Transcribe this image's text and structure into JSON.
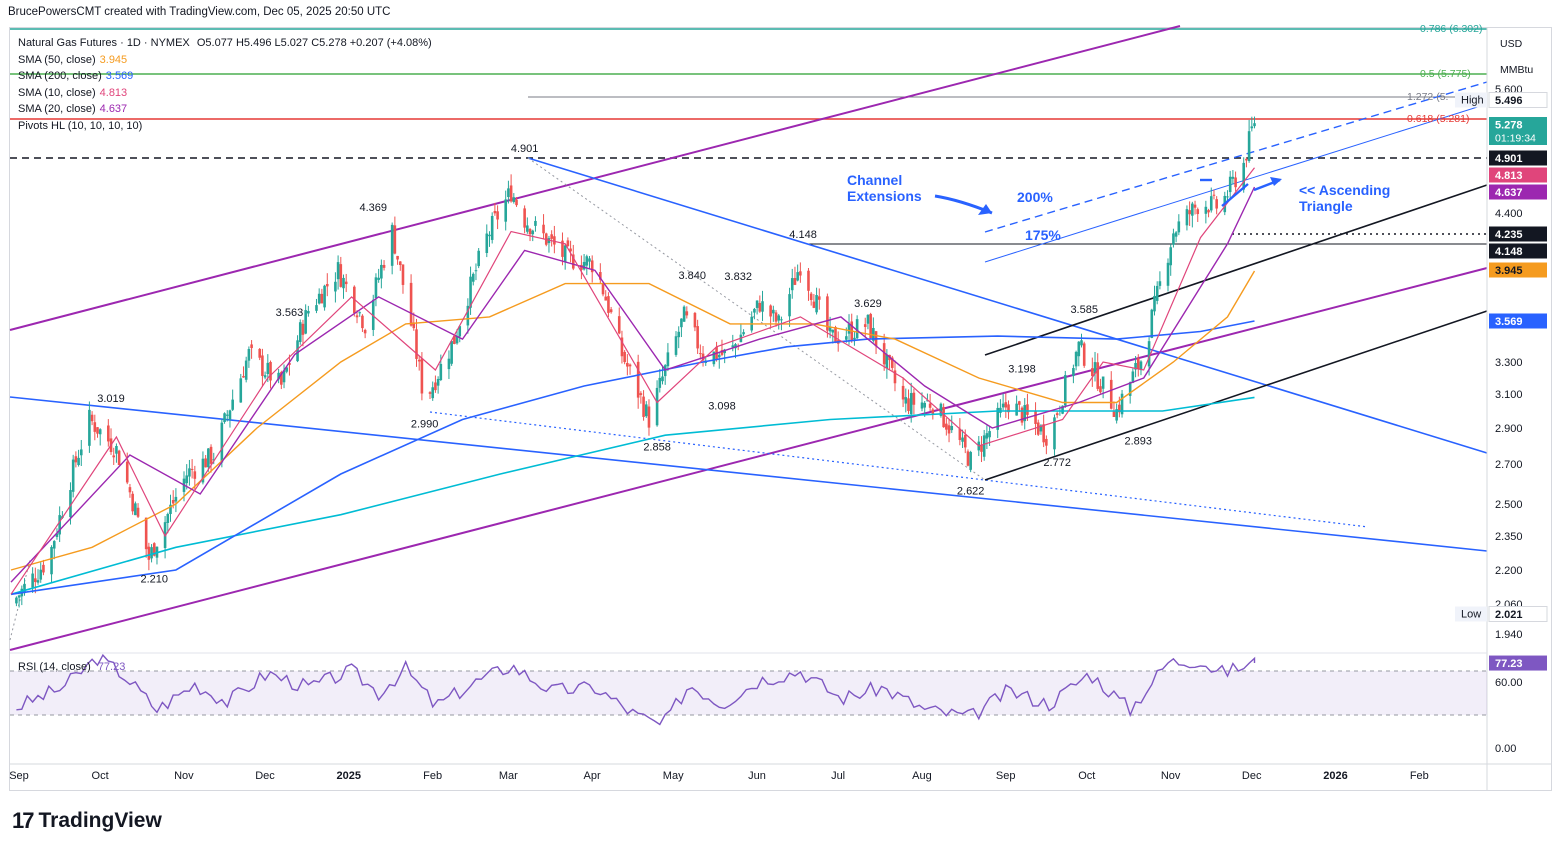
{
  "header": {
    "text": "BrucePowersCMT created with TradingView.com, Dec 05, 2025 20:50 UTC"
  },
  "legend": {
    "symbol": "Natural Gas Futures · 1D · NYMEX",
    "ohlc": "O5.077  H5.496  L5.027  C5.278  +0.207 (+4.08%)",
    "indicators": [
      {
        "label": "SMA (50, close)",
        "value": "3.945",
        "color": "#f59b1f"
      },
      {
        "label": "SMA (200, close)",
        "value": "3.569",
        "color": "#2962ff"
      },
      {
        "label": "SMA (10, close)",
        "value": "4.813",
        "color": "#e0457b"
      },
      {
        "label": "SMA (20, close)",
        "value": "4.637",
        "color": "#9c27b0"
      },
      {
        "label": "Pivots HL (10, 10, 10, 10)",
        "value": "",
        "color": "#131722"
      }
    ]
  },
  "rsi": {
    "label": "RSI (14, close)",
    "value": "77.23",
    "color": "#7e57c2"
  },
  "logo": {
    "text": "TradingView",
    "mark": "17"
  },
  "annotations": {
    "channel": [
      "Channel",
      "Extensions"
    ],
    "ext200": "200%",
    "ext175": "175%",
    "triangle": [
      "<< Ascending",
      "Triangle"
    ]
  },
  "colors": {
    "up": "#26a69a",
    "down": "#ef5350",
    "sma10": "#e0457b",
    "sma20": "#9c27b0",
    "sma50": "#f59b1f",
    "sma200": "#2962ff",
    "blue_line": "#2962ff",
    "purple_line": "#9c27b0"
  },
  "chart_data": {
    "type": "line",
    "title": "Natural Gas Futures · 1D · NYMEX",
    "y_unit": [
      "USD",
      "MMBtu"
    ],
    "ylim": [
      1.85,
      6.35
    ],
    "y_ticks": [
      "5.600",
      "4.400",
      "3.300",
      "3.100",
      "2.900",
      "2.700",
      "2.500",
      "2.350",
      "2.200",
      "2.060",
      "1.940"
    ],
    "x_ticks": [
      "Sep",
      "Oct",
      "Nov",
      "Dec",
      "2025",
      "Feb",
      "Mar",
      "Apr",
      "May",
      "Jun",
      "Jul",
      "Aug",
      "Sep",
      "Oct",
      "Nov",
      "Dec",
      "2026",
      "Feb"
    ],
    "x_range": [
      "2024-09-01",
      "2026-03-01"
    ],
    "price_path": [
      [
        "2024-09-01",
        2.06
      ],
      [
        "2024-09-15",
        2.25
      ],
      [
        "2024-09-30",
        2.95
      ],
      [
        "2024-10-10",
        2.78
      ],
      [
        "2024-10-22",
        2.25
      ],
      [
        "2024-11-05",
        2.65
      ],
      [
        "2024-11-15",
        2.75
      ],
      [
        "2024-11-28",
        3.35
      ],
      [
        "2024-12-10",
        3.15
      ],
      [
        "2024-12-20",
        3.65
      ],
      [
        "2024-12-31",
        3.95
      ],
      [
        "2025-01-10",
        3.55
      ],
      [
        "2025-01-20",
        4.25
      ],
      [
        "2025-02-01",
        3.05
      ],
      [
        "2025-02-12",
        3.45
      ],
      [
        "2025-02-24",
        4.2
      ],
      [
        "2025-03-05",
        4.6
      ],
      [
        "2025-03-10",
        4.35
      ],
      [
        "2025-03-25",
        4.05
      ],
      [
        "2025-04-05",
        4.0
      ],
      [
        "2025-04-15",
        3.35
      ],
      [
        "2025-04-25",
        2.95
      ],
      [
        "2025-05-08",
        3.6
      ],
      [
        "2025-05-15",
        3.35
      ],
      [
        "2025-05-25",
        3.35
      ],
      [
        "2025-06-05",
        3.7
      ],
      [
        "2025-06-12",
        3.55
      ],
      [
        "2025-06-20",
        4.0
      ],
      [
        "2025-07-01",
        3.45
      ],
      [
        "2025-07-15",
        3.55
      ],
      [
        "2025-07-28",
        3.05
      ],
      [
        "2025-08-08",
        3.05
      ],
      [
        "2025-08-22",
        2.72
      ],
      [
        "2025-09-05",
        3.05
      ],
      [
        "2025-09-20",
        2.85
      ],
      [
        "2025-10-01",
        3.4
      ],
      [
        "2025-10-15",
        3.0
      ],
      [
        "2025-10-25",
        3.35
      ],
      [
        "2025-11-05",
        4.25
      ],
      [
        "2025-11-15",
        4.5
      ],
      [
        "2025-11-22",
        4.45
      ],
      [
        "2025-12-01",
        4.85
      ],
      [
        "2025-12-05",
        5.278
      ]
    ],
    "sma10_path": [
      [
        "2024-09-01",
        2.1
      ],
      [
        "2024-10-10",
        2.85
      ],
      [
        "2024-10-28",
        2.35
      ],
      [
        "2024-12-05",
        3.2
      ],
      [
        "2025-01-05",
        3.75
      ],
      [
        "2025-02-05",
        3.25
      ],
      [
        "2025-03-05",
        4.25
      ],
      [
        "2025-03-25",
        4.15
      ],
      [
        "2025-04-28",
        3.05
      ],
      [
        "2025-05-20",
        3.4
      ],
      [
        "2025-06-20",
        3.6
      ],
      [
        "2025-07-28",
        3.2
      ],
      [
        "2025-08-25",
        2.8
      ],
      [
        "2025-09-25",
        2.95
      ],
      [
        "2025-10-10",
        3.3
      ],
      [
        "2025-10-25",
        3.25
      ],
      [
        "2025-11-15",
        4.2
      ],
      [
        "2025-12-05",
        4.813
      ]
    ],
    "sma20_path": [
      [
        "2024-09-01",
        2.15
      ],
      [
        "2024-10-15",
        2.75
      ],
      [
        "2024-11-10",
        2.55
      ],
      [
        "2024-12-15",
        3.35
      ],
      [
        "2025-01-15",
        3.75
      ],
      [
        "2025-02-15",
        3.45
      ],
      [
        "2025-03-10",
        4.1
      ],
      [
        "2025-04-05",
        3.95
      ],
      [
        "2025-05-01",
        3.25
      ],
      [
        "2025-06-05",
        3.45
      ],
      [
        "2025-07-05",
        3.6
      ],
      [
        "2025-08-05",
        3.15
      ],
      [
        "2025-08-30",
        2.9
      ],
      [
        "2025-10-01",
        3.05
      ],
      [
        "2025-10-25",
        3.2
      ],
      [
        "2025-11-25",
        4.15
      ],
      [
        "2025-12-05",
        4.637
      ]
    ],
    "sma50_path": [
      [
        "2024-09-01",
        2.2
      ],
      [
        "2024-10-01",
        2.3
      ],
      [
        "2024-11-01",
        2.5
      ],
      [
        "2024-12-01",
        2.9
      ],
      [
        "2025-01-01",
        3.3
      ],
      [
        "2025-01-25",
        3.55
      ],
      [
        "2025-02-25",
        3.6
      ],
      [
        "2025-03-25",
        3.85
      ],
      [
        "2025-04-25",
        3.85
      ],
      [
        "2025-05-25",
        3.55
      ],
      [
        "2025-06-25",
        3.55
      ],
      [
        "2025-07-25",
        3.45
      ],
      [
        "2025-08-25",
        3.2
      ],
      [
        "2025-09-25",
        3.05
      ],
      [
        "2025-10-15",
        3.05
      ],
      [
        "2025-11-05",
        3.3
      ],
      [
        "2025-11-25",
        3.6
      ],
      [
        "2025-12-05",
        3.945
      ]
    ],
    "sma200_path": [
      [
        "2024-09-01",
        2.1
      ],
      [
        "2024-11-01",
        2.2
      ],
      [
        "2025-01-01",
        2.65
      ],
      [
        "2025-02-15",
        2.95
      ],
      [
        "2025-04-01",
        3.15
      ],
      [
        "2025-05-15",
        3.3
      ],
      [
        "2025-06-15",
        3.4
      ],
      [
        "2025-07-15",
        3.45
      ],
      [
        "2025-09-01",
        3.47
      ],
      [
        "2025-10-15",
        3.45
      ],
      [
        "2025-11-15",
        3.5
      ],
      [
        "2025-12-05",
        3.569
      ]
    ],
    "sma_teal_path": [
      [
        "2024-09-01",
        2.1
      ],
      [
        "2024-11-01",
        2.3
      ],
      [
        "2025-01-01",
        2.45
      ],
      [
        "2025-03-01",
        2.65
      ],
      [
        "2025-05-01",
        2.86
      ],
      [
        "2025-07-01",
        2.95
      ],
      [
        "2025-09-01",
        3.0
      ],
      [
        "2025-11-01",
        3.0
      ],
      [
        "2025-12-05",
        3.08
      ]
    ],
    "pivots": [
      {
        "date": "2024-10-08",
        "value": "3.019",
        "pos": "above"
      },
      {
        "date": "2024-10-24",
        "value": "2.210",
        "pos": "below"
      },
      {
        "date": "2024-12-13",
        "value": "3.563",
        "pos": "above"
      },
      {
        "date": "2025-01-13",
        "value": "4.369",
        "pos": "above"
      },
      {
        "date": "2025-02-01",
        "value": "2.990",
        "pos": "below"
      },
      {
        "date": "2025-03-10",
        "value": "4.901",
        "pos": "above"
      },
      {
        "date": "2025-04-28",
        "value": "2.858",
        "pos": "below"
      },
      {
        "date": "2025-05-11",
        "value": "3.840",
        "pos": "above"
      },
      {
        "date": "2025-05-28",
        "value": "3.832",
        "pos": "above"
      },
      {
        "date": "2025-05-22",
        "value": "3.098",
        "pos": "below"
      },
      {
        "date": "2025-06-21",
        "value": "4.148",
        "pos": "above"
      },
      {
        "date": "2025-07-15",
        "value": "3.629",
        "pos": "above"
      },
      {
        "date": "2025-08-22",
        "value": "2.622",
        "pos": "below"
      },
      {
        "date": "2025-09-10",
        "value": "3.198",
        "pos": "above"
      },
      {
        "date": "2025-09-23",
        "value": "2.772",
        "pos": "below"
      },
      {
        "date": "2025-10-03",
        "value": "3.585",
        "pos": "above"
      },
      {
        "date": "2025-10-23",
        "value": "2.893",
        "pos": "below"
      }
    ],
    "fib_levels": [
      {
        "label": "0.786 (6.302)",
        "color": "#26a69a"
      },
      {
        "label": "0.5 (5.775)",
        "color": "#4caf50"
      },
      {
        "label": "1.272 (5.",
        "color": "#787b86"
      },
      {
        "label": "0.618 (5.281)",
        "color": "#e53935"
      }
    ],
    "price_labels": [
      {
        "text": "High",
        "value": "5.496"
      },
      {
        "text": "",
        "value": "5.278",
        "sub": "01:19:34"
      },
      {
        "text": "",
        "value": "4.901"
      },
      {
        "text": "",
        "value": "4.813"
      },
      {
        "text": "",
        "value": "4.637"
      },
      {
        "text": "",
        "value": "4.235"
      },
      {
        "text": "",
        "value": "4.148"
      },
      {
        "text": "",
        "value": "3.945"
      },
      {
        "text": "",
        "value": "3.569"
      },
      {
        "text": "Low",
        "value": "2.021"
      }
    ],
    "rsi_ticks": [
      "60.00",
      "0.00"
    ],
    "rsi_value": 77.23,
    "rsi_path": [
      [
        "2024-09-01",
        35
      ],
      [
        "2024-09-20",
        55
      ],
      [
        "2024-10-03",
        82
      ],
      [
        "2024-10-12",
        68
      ],
      [
        "2024-10-25",
        35
      ],
      [
        "2024-11-08",
        58
      ],
      [
        "2024-11-20",
        42
      ],
      [
        "2024-12-05",
        68
      ],
      [
        "2024-12-20",
        55
      ],
      [
        "2025-01-05",
        70
      ],
      [
        "2025-01-15",
        50
      ],
      [
        "2025-01-25",
        72
      ],
      [
        "2025-02-05",
        38
      ],
      [
        "2025-02-20",
        60
      ],
      [
        "2025-03-05",
        75
      ],
      [
        "2025-03-20",
        52
      ],
      [
        "2025-04-05",
        55
      ],
      [
        "2025-04-20",
        30
      ],
      [
        "2025-04-30",
        20
      ],
      [
        "2025-05-10",
        58
      ],
      [
        "2025-05-22",
        40
      ],
      [
        "2025-06-05",
        62
      ],
      [
        "2025-06-20",
        70
      ],
      [
        "2025-07-05",
        45
      ],
      [
        "2025-07-20",
        55
      ],
      [
        "2025-08-05",
        35
      ],
      [
        "2025-08-22",
        28
      ],
      [
        "2025-09-05",
        52
      ],
      [
        "2025-09-20",
        40
      ],
      [
        "2025-10-05",
        68
      ],
      [
        "2025-10-20",
        35
      ],
      [
        "2025-11-03",
        78
      ],
      [
        "2025-11-15",
        80
      ],
      [
        "2025-11-22",
        68
      ],
      [
        "2025-12-05",
        77.23
      ]
    ]
  }
}
